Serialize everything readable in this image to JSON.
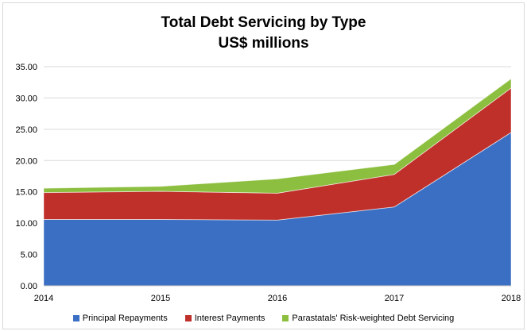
{
  "chart_data": {
    "type": "area",
    "stacked": true,
    "title": "Total Debt Servicing by Type",
    "subtitle": "US$ millions",
    "categories": [
      "2014",
      "2015",
      "2016",
      "2017",
      "2018"
    ],
    "series": [
      {
        "name": "Principal Repayments",
        "values": [
          10.6,
          10.6,
          10.5,
          12.6,
          24.5
        ],
        "color": "#3a6fc4"
      },
      {
        "name": "Interest Payments",
        "values": [
          4.3,
          4.5,
          4.3,
          5.2,
          7.1
        ],
        "color": "#c0302b"
      },
      {
        "name": "Parastatals' Risk-weighted Debt Servicing",
        "values": [
          0.7,
          0.8,
          2.3,
          1.6,
          1.5
        ],
        "color": "#8cbf3f"
      }
    ],
    "ylim": [
      0,
      35
    ],
    "yticks": [
      "0.00",
      "5.00",
      "10.00",
      "15.00",
      "20.00",
      "25.00",
      "30.00",
      "35.00"
    ],
    "grid": true,
    "legend_position": "bottom"
  }
}
